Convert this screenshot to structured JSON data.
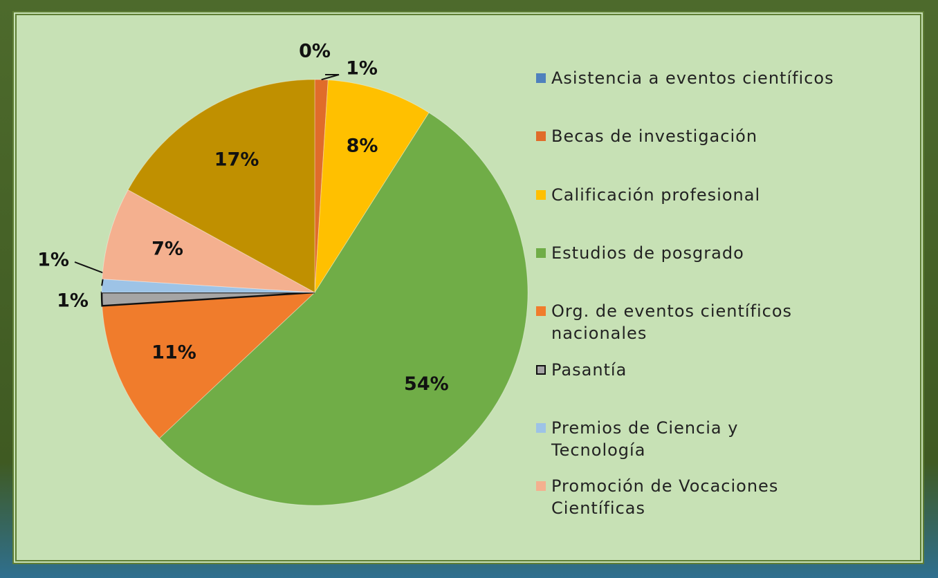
{
  "chart_data": {
    "type": "pie",
    "categories": [
      "Asistencia a eventos científicos",
      "Becas de investigación",
      "Calificación profesional",
      "Estudios de posgrado",
      "Org. de eventos científicos nacionales",
      "Pasantía",
      "Premios de Ciencia y Tecnología",
      "Promoción de Vocaciones Científicas",
      null
    ],
    "values": [
      0,
      1,
      8,
      54,
      11,
      1,
      1,
      7,
      17
    ],
    "value_labels": [
      "0%",
      "1%",
      "8%",
      "54%",
      "11%",
      "1%",
      "1%",
      "7%",
      "17%"
    ],
    "colors": [
      "#4f81bd",
      "#e06c2a",
      "#ffc000",
      "#70ad47",
      "#f07c2c",
      "#a5a5a5",
      "#9dc3e6",
      "#f4b08f",
      "#c09000"
    ],
    "legend": "right"
  }
}
